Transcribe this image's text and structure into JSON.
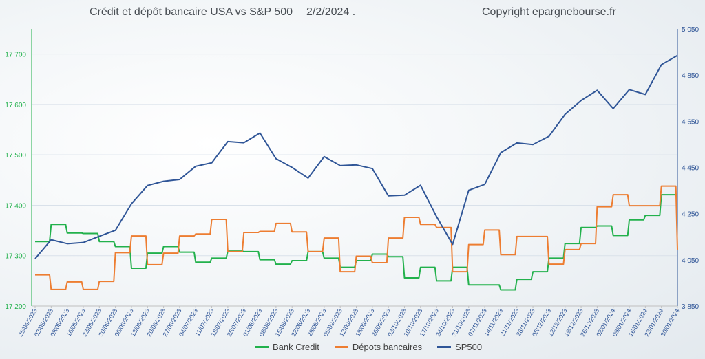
{
  "title": {
    "text": "Crédit et dépôt bancaire USA vs S&P 500",
    "date": "2/2/2024 ."
  },
  "copyright": "Copyright epargnebourse.fr",
  "colors": {
    "bank_credit": "#22b14c",
    "deposits": "#ed7d31",
    "sp500": "#2f5597",
    "left_axis": "#22b14c",
    "right_axis": "#2f5597",
    "grid": "#d9e1ea"
  },
  "chart_data": {
    "type": "line",
    "title": "Crédit et dépôt bancaire USA vs S&P 500 2/2/2024 .",
    "xlabel": "",
    "ylabel": "",
    "y_left_lim": [
      17200,
      17750
    ],
    "y_left_ticks": [
      "17 200",
      "17 300",
      "17 400",
      "17 500",
      "17 600",
      "17 700"
    ],
    "y_right_lim": [
      3850,
      5050
    ],
    "y_right_ticks": [
      "3 850",
      "4 050",
      "4 250",
      "4 450",
      "4 650",
      "4 850",
      "5 050"
    ],
    "x_ticks": [
      "25/04/2023",
      "02/05/2023",
      "09/05/2023",
      "16/05/2023",
      "23/05/2023",
      "30/05/2023",
      "06/06/2023",
      "13/06/2023",
      "20/06/2023",
      "27/06/2023",
      "04/07/2023",
      "11/07/2023",
      "18/07/2023",
      "25/07/2023",
      "01/08/2023",
      "08/08/2023",
      "15/08/2023",
      "22/08/2023",
      "29/08/2023",
      "05/09/2023",
      "12/09/2023",
      "19/09/2023",
      "26/09/2023",
      "03/10/2023",
      "10/10/2023",
      "17/10/2023",
      "24/10/2023",
      "31/10/2023",
      "07/11/2023",
      "14/11/2023",
      "21/11/2023",
      "28/11/2023",
      "05/12/2023",
      "12/12/2023",
      "19/12/2023",
      "26/12/2023",
      "02/01/2024",
      "09/01/2024",
      "16/01/2024",
      "23/01/2024",
      "30/01/2024"
    ],
    "legend_position": "bottom",
    "grid": true,
    "series": [
      {
        "name": "Bank Credit",
        "axis": "left",
        "values": [
          17328,
          17362,
          17345,
          17344,
          17328,
          17318,
          17275,
          17305,
          17318,
          17307,
          17287,
          17295,
          17309,
          17308,
          17292,
          17283,
          17290,
          17308,
          17295,
          17277,
          17290,
          17303,
          17298,
          17256,
          17277,
          17250,
          17277,
          17242,
          17242,
          17232,
          17253,
          17268,
          17295,
          17324,
          17356,
          17359,
          17340,
          17371,
          17380,
          17421,
          17421
        ]
      },
      {
        "name": "Dépots bancaires",
        "axis": "left",
        "values": [
          17262,
          17233,
          17248,
          17233,
          17249,
          17306,
          17339,
          17282,
          17305,
          17339,
          17343,
          17372,
          17308,
          17346,
          17348,
          17364,
          17347,
          17308,
          17335,
          17268,
          17299,
          17286,
          17335,
          17376,
          17362,
          17356,
          17268,
          17322,
          17351,
          17302,
          17338,
          17338,
          17283,
          17312,
          17324,
          17397,
          17421,
          17399,
          17399,
          17438,
          17312
        ]
      },
      {
        "name": "SP500",
        "axis": "right",
        "values": [
          4055,
          4137,
          4120,
          4125,
          4152,
          4178,
          4293,
          4372,
          4390,
          4398,
          4455,
          4470,
          4562,
          4557,
          4599,
          4488,
          4450,
          4404,
          4497,
          4458,
          4461,
          4445,
          4327,
          4330,
          4373,
          4237,
          4117,
          4351,
          4377,
          4514,
          4556,
          4549,
          4585,
          4680,
          4740,
          4784,
          4705,
          4787,
          4766,
          4895,
          4935
        ]
      }
    ]
  }
}
